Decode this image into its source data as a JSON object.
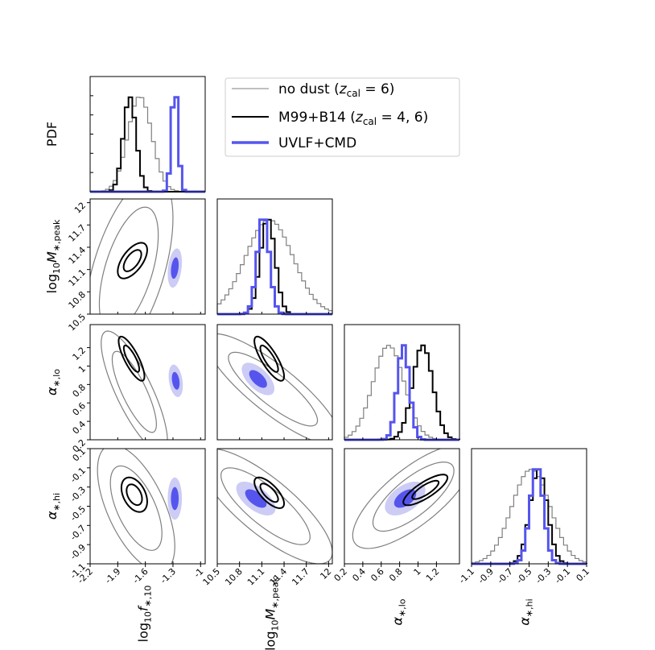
{
  "colors": {
    "no_dust": "#7f7f7f",
    "m99_b14": "#000000",
    "uvlf_cmd": "#5555ee",
    "uvlf_cmd_outer_fill": "#ccccf5",
    "uvlf_cmd_inner_fill": "#5555ee"
  },
  "chart_data": {
    "type": "corner",
    "parameters": [
      {
        "key": "log10f",
        "label": "log₁₀f∗,10",
        "range": [
          -2.2,
          -0.95
        ],
        "ticks": [
          -2.2,
          -1.9,
          -1.6,
          -1.3,
          -1
        ],
        "tick_labels": [
          "-2.2",
          "-1.9",
          "-1.6",
          "-1.3",
          "-1"
        ]
      },
      {
        "key": "log10M",
        "label": "log₁₀M∗,peak",
        "range": [
          10.5,
          12.05
        ],
        "ticks": [
          10.5,
          10.8,
          11.1,
          11.4,
          11.7,
          12
        ],
        "tick_labels": [
          "10.5",
          "10.8",
          "11.1",
          "11.4",
          "11.7",
          "12"
        ]
      },
      {
        "key": "alo",
        "label": "α∗,lo",
        "range": [
          0.2,
          1.45
        ],
        "ticks": [
          0.2,
          0.4,
          0.6,
          0.8,
          1,
          1.2
        ],
        "tick_labels": [
          "0.2",
          "0.4",
          "0.6",
          "0.8",
          "1",
          "1.2"
        ]
      },
      {
        "key": "ahi",
        "label": "α∗,hi",
        "range": [
          -1.1,
          0.1
        ],
        "ticks": [
          -1.1,
          -0.9,
          -0.7,
          -0.5,
          -0.3,
          -0.1,
          0.1
        ],
        "tick_labels": [
          "-1.1",
          "-0.9",
          "-0.7",
          "-0.5",
          "-0.3",
          "-0.1",
          "0.1"
        ]
      }
    ],
    "diag_ylabel": "PDF",
    "legend": {
      "placement": "top-right",
      "entries": [
        {
          "label": "no dust (z_cal = 6)",
          "display": "no dust (zcal = 6)",
          "color": "#7f7f7f",
          "weight": 1
        },
        {
          "label": "M99+B14 (z_cal = 4, 6)",
          "display": "M99+B14 (zcal = 4, 6)",
          "color": "#000000",
          "weight": 2
        },
        {
          "label": "UVLF+CMD",
          "display": "UVLF+CMD",
          "color": "#5555ee",
          "weight": 3
        }
      ]
    },
    "series": [
      {
        "name": "no dust",
        "marginals": {
          "log10f": {
            "mean": -1.66,
            "sd": 0.13
          },
          "log10M": {
            "mean": 11.2,
            "sd": 0.32
          },
          "alo": {
            "mean": 0.68,
            "sd": 0.17
          },
          "ahi": {
            "mean": -0.48,
            "sd": 0.2
          }
        },
        "contours": [
          {
            "pair": [
              "log10f",
              "log10M"
            ],
            "cx": -1.78,
            "cy": 11.1,
            "sx": 0.16,
            "sy": 0.42,
            "rho": 0.55,
            "levels": [
              2,
              3
            ]
          },
          {
            "pair": [
              "log10f",
              "alo"
            ],
            "cx": -1.72,
            "cy": 0.72,
            "sx": 0.12,
            "sy": 0.22,
            "rho": -0.8,
            "levels": [
              2,
              3
            ]
          },
          {
            "pair": [
              "log10M",
              "alo"
            ],
            "cx": 11.25,
            "cy": 0.75,
            "sx": 0.3,
            "sy": 0.2,
            "rho": -0.85,
            "levels": [
              2,
              3
            ]
          },
          {
            "pair": [
              "log10f",
              "ahi"
            ],
            "cx": -1.7,
            "cy": -0.52,
            "sx": 0.14,
            "sy": 0.22,
            "rho": -0.6,
            "levels": [
              2,
              3
            ]
          },
          {
            "pair": [
              "log10M",
              "ahi"
            ],
            "cx": 11.15,
            "cy": -0.5,
            "sx": 0.3,
            "sy": 0.2,
            "rho": -0.8,
            "levels": [
              2,
              3
            ]
          },
          {
            "pair": [
              "alo",
              "ahi"
            ],
            "cx": 0.95,
            "cy": -0.4,
            "sx": 0.22,
            "sy": 0.18,
            "rho": 0.75,
            "levels": [
              2,
              3
            ]
          }
        ]
      },
      {
        "name": "M99+B14",
        "marginals": {
          "log10f": {
            "mean": -1.77,
            "sd": 0.07
          },
          "log10M": {
            "mean": 11.18,
            "sd": 0.1
          },
          "alo": {
            "mean": 1.05,
            "sd": 0.11
          },
          "ahi": {
            "mean": -0.4,
            "sd": 0.09
          }
        },
        "contours": [
          {
            "pair": [
              "log10f",
              "log10M"
            ],
            "cx": -1.74,
            "cy": 11.22,
            "sx": 0.08,
            "sy": 0.12,
            "rho": 0.6,
            "levels": [
              1.2,
              2
            ]
          },
          {
            "pair": [
              "log10f",
              "alo"
            ],
            "cx": -1.75,
            "cy": 1.08,
            "sx": 0.07,
            "sy": 0.12,
            "rho": -0.8,
            "levels": [
              1.2,
              2
            ]
          },
          {
            "pair": [
              "log10M",
              "alo"
            ],
            "cx": 11.2,
            "cy": 1.08,
            "sx": 0.1,
            "sy": 0.12,
            "rho": -0.8,
            "levels": [
              1.2,
              2
            ]
          },
          {
            "pair": [
              "log10f",
              "ahi"
            ],
            "cx": -1.72,
            "cy": -0.38,
            "sx": 0.07,
            "sy": 0.09,
            "rho": -0.4,
            "levels": [
              1.2,
              2
            ]
          },
          {
            "pair": [
              "log10M",
              "ahi"
            ],
            "cx": 11.2,
            "cy": -0.36,
            "sx": 0.1,
            "sy": 0.08,
            "rho": -0.7,
            "levels": [
              1.2,
              2
            ]
          },
          {
            "pair": [
              "alo",
              "ahi"
            ],
            "cx": 1.08,
            "cy": -0.33,
            "sx": 0.12,
            "sy": 0.08,
            "rho": 0.8,
            "levels": [
              1.2,
              2
            ]
          }
        ]
      },
      {
        "name": "UVLF+CMD",
        "marginals": {
          "log10f": {
            "mean": -1.28,
            "sd": 0.035
          },
          "log10M": {
            "mean": 11.12,
            "sd": 0.08
          },
          "alo": {
            "mean": 0.84,
            "sd": 0.065
          },
          "ahi": {
            "mean": -0.42,
            "sd": 0.07
          }
        },
        "contours": [
          {
            "pair": [
              "log10f",
              "log10M"
            ],
            "cx": -1.28,
            "cy": 11.12,
            "sx": 0.035,
            "sy": 0.12,
            "rho": 0.3,
            "levels": [
              1.2,
              2.2
            ]
          },
          {
            "pair": [
              "log10f",
              "alo"
            ],
            "cx": -1.27,
            "cy": 0.84,
            "sx": 0.035,
            "sy": 0.08,
            "rho": -0.3,
            "levels": [
              1.2,
              2.2
            ]
          },
          {
            "pair": [
              "log10M",
              "alo"
            ],
            "cx": 11.05,
            "cy": 0.86,
            "sx": 0.1,
            "sy": 0.08,
            "rho": -0.6,
            "levels": [
              1.2,
              2.2
            ]
          },
          {
            "pair": [
              "log10f",
              "ahi"
            ],
            "cx": -1.28,
            "cy": -0.42,
            "sx": 0.035,
            "sy": 0.1,
            "rho": 0.0,
            "levels": [
              1.2,
              2.2
            ]
          },
          {
            "pair": [
              "log10M",
              "ahi"
            ],
            "cx": 11.02,
            "cy": -0.42,
            "sx": 0.12,
            "sy": 0.08,
            "rho": -0.6,
            "levels": [
              1.2,
              2.2
            ]
          },
          {
            "pair": [
              "alo",
              "ahi"
            ],
            "cx": 0.86,
            "cy": -0.42,
            "sx": 0.1,
            "sy": 0.08,
            "rho": 0.5,
            "levels": [
              1.2,
              2.2
            ]
          }
        ]
      }
    ]
  }
}
